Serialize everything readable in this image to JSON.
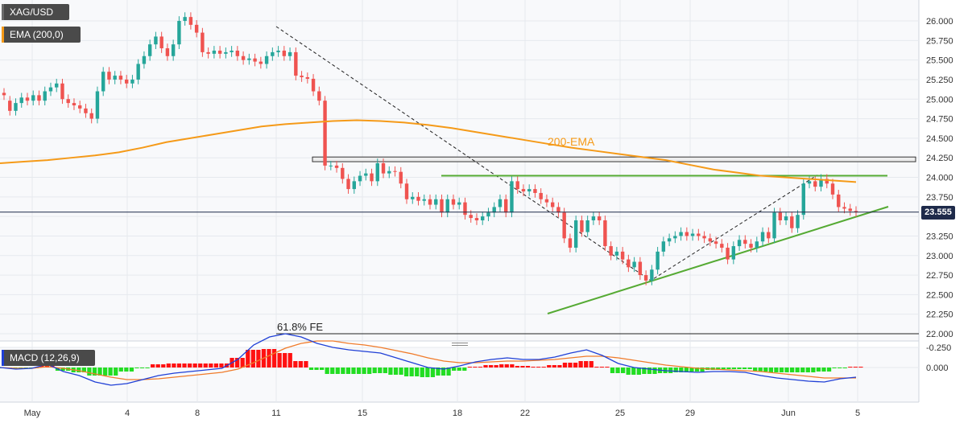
{
  "symbol": "XAG/USD",
  "ema_legend": "EMA (200,0)",
  "macd_legend": "MACD (12,26,9)",
  "current_price_label": "23.555",
  "colors": {
    "up": "#26a69a",
    "down": "#ef5350",
    "ema": "#f59a18",
    "macd_line": "#1f3fd6",
    "signal_line": "#f07b2a",
    "hist_up": "#22dd22",
    "hist_down": "#ff1111",
    "trend_green": "#55aa33",
    "price_line": "#1e2a4a"
  },
  "chart_data": [
    {
      "type": "candlestick",
      "title": "XAG/USD",
      "ylim": [
        22.0,
        26.1
      ],
      "y_ticks": [
        "26.000",
        "25.750",
        "25.500",
        "25.250",
        "25.000",
        "24.750",
        "24.500",
        "24.250",
        "24.000",
        "23.750",
        "23.500",
        "23.250",
        "23.000",
        "22.750",
        "22.500",
        "22.250",
        "22.000"
      ],
      "x_tick_labels": [
        "May",
        "4",
        "8",
        "11",
        "15",
        "18",
        "22",
        "25",
        "29",
        "Jun",
        "5"
      ],
      "annotations": {
        "ema_label": "200-EMA",
        "fib_label": "61.8% FE",
        "fib_level": 22.0,
        "current_price": 23.555,
        "resistance_zone": [
          24.2,
          24.26
        ],
        "horizontal_green": 24.02
      },
      "candles": [
        [
          25.08,
          25.05
        ],
        [
          24.98,
          24.85
        ],
        [
          24.85,
          24.95
        ],
        [
          24.95,
          25.02
        ],
        [
          25.02,
          24.98
        ],
        [
          24.98,
          25.05
        ],
        [
          25.05,
          24.98
        ],
        [
          24.98,
          25.1
        ],
        [
          25.1,
          25.15
        ],
        [
          25.15,
          25.2
        ],
        [
          25.2,
          25.0
        ],
        [
          25.0,
          24.95
        ],
        [
          24.95,
          24.92
        ],
        [
          24.92,
          24.88
        ],
        [
          24.88,
          24.82
        ],
        [
          24.82,
          24.75
        ],
        [
          24.75,
          25.1
        ],
        [
          25.1,
          25.35
        ],
        [
          25.35,
          25.25
        ],
        [
          25.25,
          25.3
        ],
        [
          25.3,
          25.25
        ],
        [
          25.25,
          25.2
        ],
        [
          25.2,
          25.25
        ],
        [
          25.25,
          25.45
        ],
        [
          25.45,
          25.55
        ],
        [
          25.55,
          25.7
        ],
        [
          25.7,
          25.8
        ],
        [
          25.8,
          25.65
        ],
        [
          25.65,
          25.55
        ],
        [
          25.55,
          25.7
        ],
        [
          25.7,
          26.0
        ],
        [
          26.0,
          26.05
        ],
        [
          26.05,
          25.95
        ],
        [
          25.95,
          25.85
        ],
        [
          25.85,
          25.6
        ],
        [
          25.6,
          25.58
        ],
        [
          25.58,
          25.62
        ],
        [
          25.62,
          25.58
        ],
        [
          25.58,
          25.6
        ],
        [
          25.6,
          25.62
        ],
        [
          25.62,
          25.55
        ],
        [
          25.55,
          25.5
        ],
        [
          25.5,
          25.52
        ],
        [
          25.52,
          25.48
        ],
        [
          25.48,
          25.45
        ],
        [
          25.45,
          25.55
        ],
        [
          25.55,
          25.6
        ],
        [
          25.6,
          25.62
        ],
        [
          25.62,
          25.55
        ],
        [
          25.55,
          25.6
        ],
        [
          25.6,
          25.3
        ],
        [
          25.3,
          25.28
        ],
        [
          25.28,
          25.26
        ],
        [
          25.26,
          25.1
        ],
        [
          25.1,
          24.98
        ],
        [
          24.98,
          24.15
        ],
        [
          24.15,
          24.15
        ],
        [
          24.15,
          24.12
        ],
        [
          24.12,
          23.98
        ],
        [
          23.98,
          23.85
        ],
        [
          23.85,
          23.95
        ],
        [
          23.95,
          24.02
        ],
        [
          24.02,
          24.05
        ],
        [
          24.05,
          23.95
        ],
        [
          23.95,
          24.18
        ],
        [
          24.18,
          24.05
        ],
        [
          24.05,
          24.08
        ],
        [
          24.08,
          24.07
        ],
        [
          24.07,
          23.92
        ],
        [
          23.92,
          23.72
        ],
        [
          23.72,
          23.75
        ],
        [
          23.75,
          23.7
        ],
        [
          23.7,
          23.72
        ],
        [
          23.72,
          23.65
        ],
        [
          23.65,
          23.72
        ],
        [
          23.72,
          23.55
        ],
        [
          23.55,
          23.72
        ],
        [
          23.72,
          23.65
        ],
        [
          23.65,
          23.68
        ],
        [
          23.68,
          23.52
        ],
        [
          23.52,
          23.48
        ],
        [
          23.48,
          23.45
        ],
        [
          23.45,
          23.5
        ],
        [
          23.5,
          23.55
        ],
        [
          23.55,
          23.62
        ],
        [
          23.62,
          23.72
        ],
        [
          23.72,
          23.55
        ],
        [
          23.55,
          23.95
        ],
        [
          23.95,
          23.85
        ],
        [
          23.85,
          23.82
        ],
        [
          23.82,
          23.85
        ],
        [
          23.85,
          23.8
        ],
        [
          23.8,
          23.72
        ],
        [
          23.72,
          23.68
        ],
        [
          23.68,
          23.62
        ],
        [
          23.62,
          23.55
        ],
        [
          23.55,
          23.22
        ],
        [
          23.22,
          23.1
        ],
        [
          23.1,
          23.45
        ],
        [
          23.45,
          23.3
        ],
        [
          23.3,
          23.45
        ],
        [
          23.45,
          23.5
        ],
        [
          23.5,
          23.45
        ],
        [
          23.45,
          23.12
        ],
        [
          23.12,
          23.0
        ],
        [
          23.0,
          23.05
        ],
        [
          23.05,
          22.95
        ],
        [
          22.95,
          22.85
        ],
        [
          22.85,
          22.92
        ],
        [
          22.92,
          22.75
        ],
        [
          22.75,
          22.68
        ],
        [
          22.68,
          22.82
        ],
        [
          22.82,
          23.05
        ],
        [
          23.05,
          23.18
        ],
        [
          23.18,
          23.22
        ],
        [
          23.22,
          23.25
        ],
        [
          23.25,
          23.3
        ],
        [
          23.3,
          23.25
        ],
        [
          23.25,
          23.28
        ],
        [
          23.28,
          23.25
        ],
        [
          23.25,
          23.22
        ],
        [
          23.22,
          23.18
        ],
        [
          23.18,
          23.15
        ],
        [
          23.15,
          23.1
        ],
        [
          23.1,
          22.95
        ],
        [
          22.95,
          23.12
        ],
        [
          23.12,
          23.2
        ],
        [
          23.2,
          23.15
        ],
        [
          23.15,
          23.1
        ],
        [
          23.1,
          23.18
        ],
        [
          23.18,
          23.3
        ],
        [
          23.3,
          23.22
        ],
        [
          23.22,
          23.55
        ],
        [
          23.55,
          23.45
        ],
        [
          23.45,
          23.5
        ],
        [
          23.5,
          23.35
        ],
        [
          23.35,
          23.52
        ],
        [
          23.52,
          23.92
        ],
        [
          23.92,
          23.95
        ],
        [
          23.95,
          23.88
        ],
        [
          23.88,
          23.98
        ],
        [
          23.98,
          23.92
        ],
        [
          23.92,
          23.78
        ],
        [
          23.78,
          23.62
        ],
        [
          23.62,
          23.6
        ],
        [
          23.6,
          23.57
        ],
        [
          23.57,
          23.555
        ]
      ],
      "ema_200": [
        24.18,
        24.2,
        24.22,
        24.25,
        24.28,
        24.32,
        24.38,
        24.45,
        24.5,
        24.55,
        24.6,
        24.65,
        24.68,
        24.7,
        24.72,
        24.73,
        24.72,
        24.7,
        24.67,
        24.63,
        24.58,
        24.53,
        24.48,
        24.43,
        24.38,
        24.34,
        24.3,
        24.26,
        24.22,
        24.16,
        24.1,
        24.06,
        24.02,
        24.0,
        23.98,
        23.96,
        23.94
      ]
    },
    {
      "type": "macd",
      "title": "MACD (12,26,9)",
      "ylim": [
        -0.45,
        0.28
      ],
      "y_ticks": [
        "0.000",
        "-0.250"
      ],
      "macd": [
        0.0,
        0.02,
        0.01,
        -0.04,
        0.05,
        0.1,
        0.18,
        0.22,
        0.2,
        0.15,
        0.1,
        0.07,
        0.05,
        0.03,
        0.01,
        -0.1,
        -0.28,
        -0.38,
        -0.42,
        -0.38,
        -0.3,
        -0.25,
        -0.22,
        -0.2,
        -0.18,
        -0.12,
        -0.06,
        0.0,
        0.02,
        -0.02,
        -0.07,
        -0.1,
        -0.12,
        -0.1,
        -0.1,
        -0.13,
        -0.18,
        -0.22,
        -0.15,
        -0.05,
        0.0,
        0.02,
        0.04,
        0.05,
        0.06,
        0.05,
        0.05,
        0.06,
        0.1,
        0.13,
        0.15,
        0.17,
        0.18,
        0.14,
        0.12
      ],
      "signal": [
        0.0,
        0.01,
        0.01,
        -0.01,
        0.01,
        0.04,
        0.08,
        0.12,
        0.15,
        0.15,
        0.14,
        0.12,
        0.1,
        0.08,
        0.06,
        0.02,
        -0.06,
        -0.15,
        -0.24,
        -0.3,
        -0.33,
        -0.33,
        -0.3,
        -0.28,
        -0.25,
        -0.21,
        -0.17,
        -0.12,
        -0.08,
        -0.06,
        -0.06,
        -0.07,
        -0.08,
        -0.08,
        -0.09,
        -0.1,
        -0.12,
        -0.14,
        -0.14,
        -0.12,
        -0.09,
        -0.06,
        -0.03,
        -0.01,
        0.01,
        0.02,
        0.03,
        0.04,
        0.05,
        0.07,
        0.09,
        0.11,
        0.13,
        0.13,
        0.13
      ],
      "histogram": [
        0.0,
        0.01,
        0.0,
        -0.03,
        0.04,
        0.06,
        0.1,
        0.1,
        0.05,
        0.0,
        -0.04,
        -0.05,
        -0.05,
        -0.05,
        -0.05,
        -0.12,
        -0.22,
        -0.23,
        -0.18,
        -0.08,
        0.03,
        0.08,
        0.08,
        0.08,
        0.07,
        0.09,
        0.11,
        0.12,
        0.1,
        0.04,
        -0.01,
        -0.03,
        -0.04,
        -0.02,
        -0.01,
        -0.03,
        -0.06,
        -0.08,
        -0.01,
        0.07,
        0.09,
        0.08,
        0.07,
        0.06,
        0.05,
        0.03,
        0.02,
        0.02,
        0.05,
        0.06,
        0.06,
        0.06,
        0.05,
        0.01,
        -0.01
      ]
    }
  ]
}
